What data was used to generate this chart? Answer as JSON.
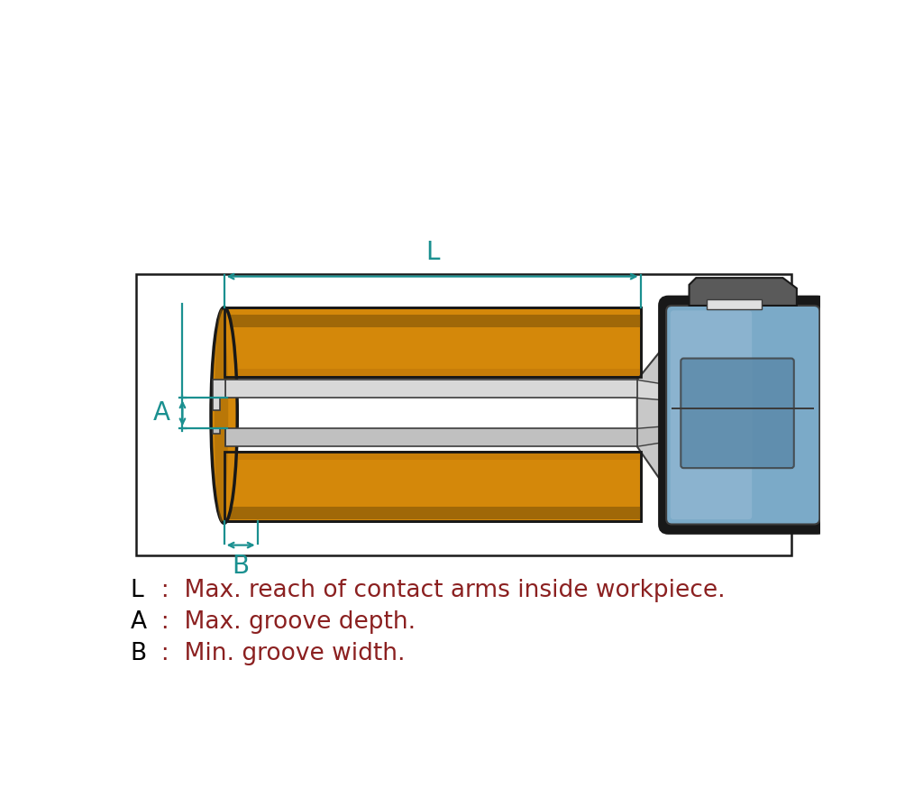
{
  "bg_color": "#ffffff",
  "border_color": "#1a1a1a",
  "teal": "#1a9090",
  "orange": "#D4880A",
  "orange_dark": "#A06808",
  "orange_mid": "#C07808",
  "gray_light": "#D8D8D8",
  "gray_mid": "#C0C0C0",
  "gray_dark": "#909090",
  "gray_neck": "#C8C8C8",
  "blue_body": "#7BAAC8",
  "blue_light": "#A0C0D8",
  "blue_dark": "#5A88A8",
  "charcoal": "#3C3C3C",
  "near_black": "#181818",
  "clip_gray": "#5A5A5A",
  "clip_light": "#888888",
  "white_part": "#E0E0E0",
  "label_color": "#1a9090",
  "legend_letter_color": "#000000",
  "legend_text_color": "#8B2020",
  "legend_L": "L  :  Max. reach of contact arms inside workpiece.",
  "legend_A": "A  :  Max. groove depth.",
  "legend_B": "B  :  Min. groove width.",
  "fig_w": 10.14,
  "fig_h": 8.74,
  "dpi": 100
}
